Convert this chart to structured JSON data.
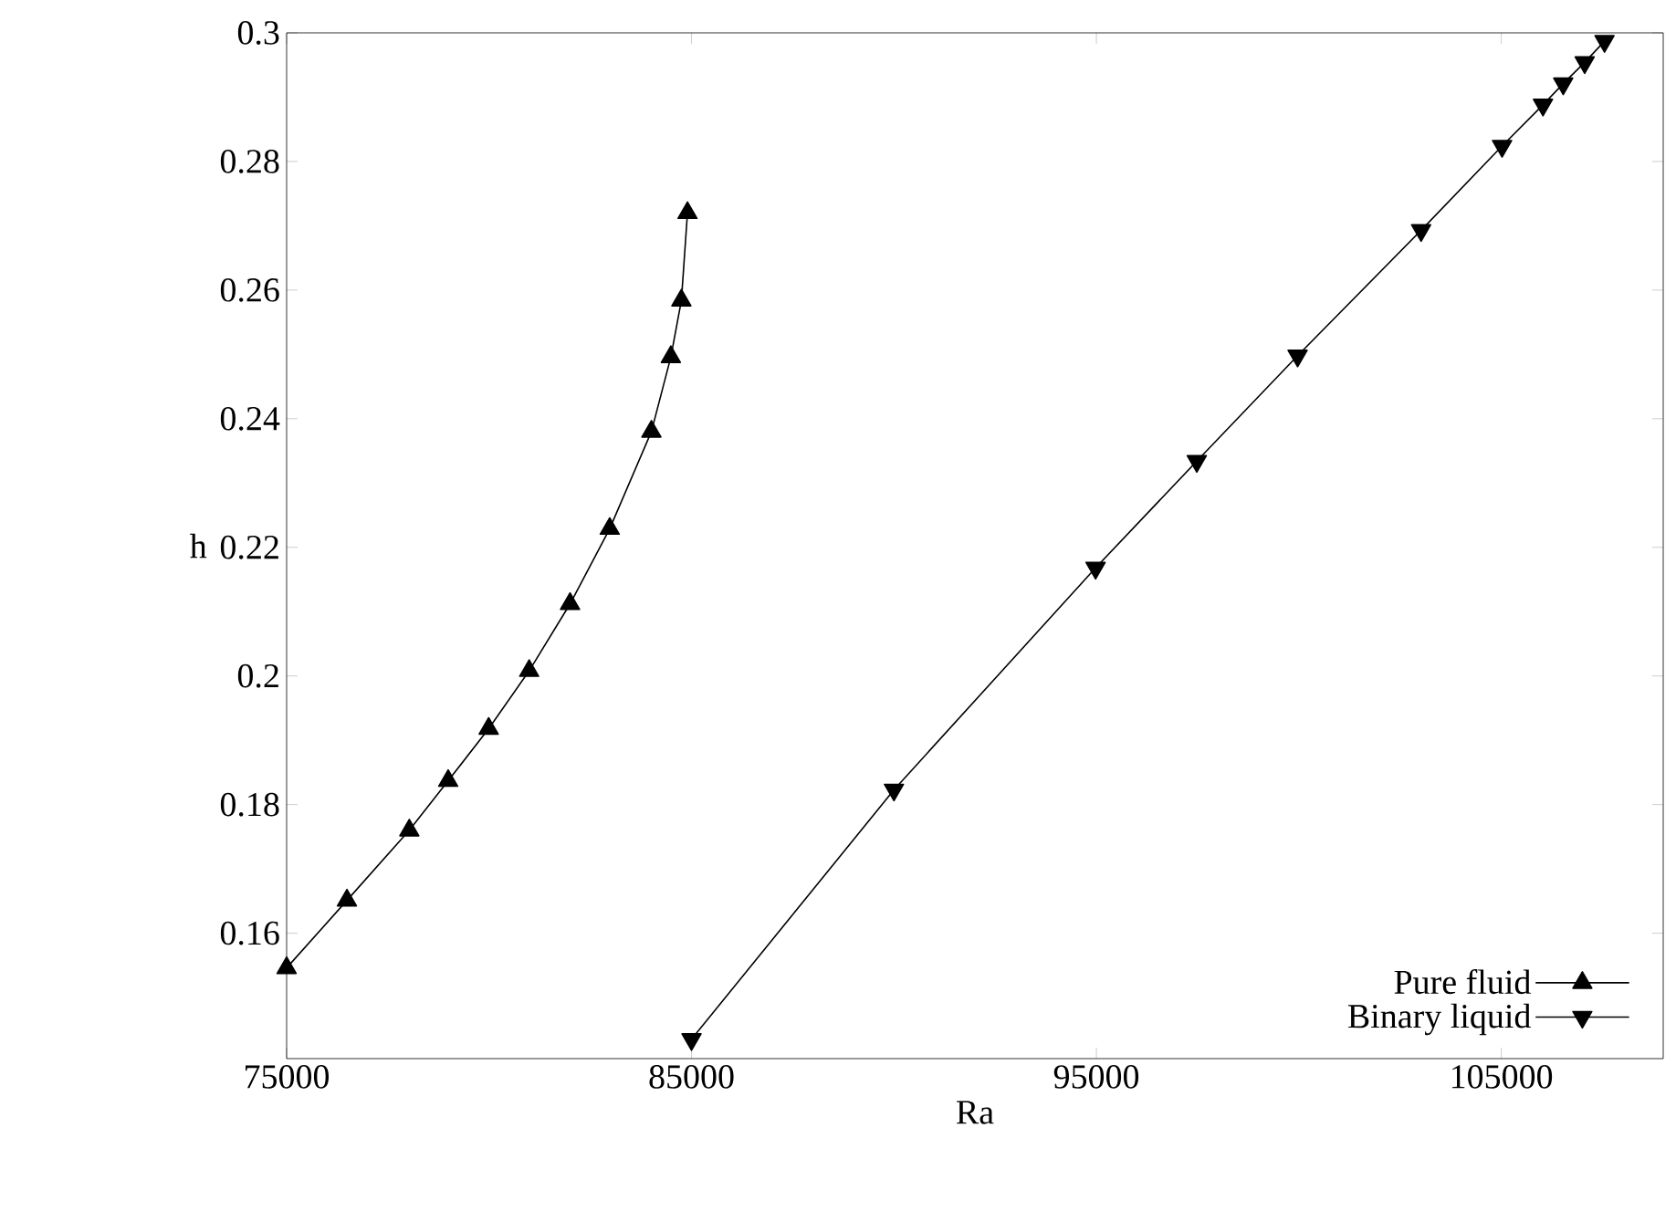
{
  "chart_data": {
    "type": "line",
    "xlabel": "Ra",
    "ylabel": "h",
    "xlim": [
      75000,
      109000
    ],
    "ylim": [
      0.1405,
      0.3
    ],
    "xticks": [
      75000,
      85000,
      95000,
      105000
    ],
    "yticks": [
      0.16,
      0.18,
      0.2,
      0.22,
      0.24,
      0.26,
      0.28,
      0.3
    ],
    "grid": false,
    "legend": "bottom right",
    "line_style": "solid",
    "series": [
      {
        "name": "Pure fluid",
        "color": "#000000",
        "marker": "triangle",
        "x": [
          75000,
          76490,
          78030,
          78990,
          79990,
          80990,
          82000,
          82980,
          84010,
          84490,
          84750,
          84900
        ],
        "values": [
          0.1546,
          0.1651,
          0.176,
          0.1837,
          0.1918,
          0.2008,
          0.2112,
          0.2229,
          0.238,
          0.2496,
          0.2584,
          0.272
        ]
      },
      {
        "name": "Binary liquid",
        "color": "#000000",
        "marker": "triangle down",
        "x": [
          85000,
          90000,
          94980,
          97480,
          99970,
          103020,
          105020,
          106030,
          106530,
          107060,
          107550
        ],
        "values": [
          0.1435,
          0.1823,
          0.2168,
          0.2334,
          0.2498,
          0.2693,
          0.2824,
          0.2888,
          0.2921,
          0.2954,
          0.2987
        ]
      }
    ]
  }
}
